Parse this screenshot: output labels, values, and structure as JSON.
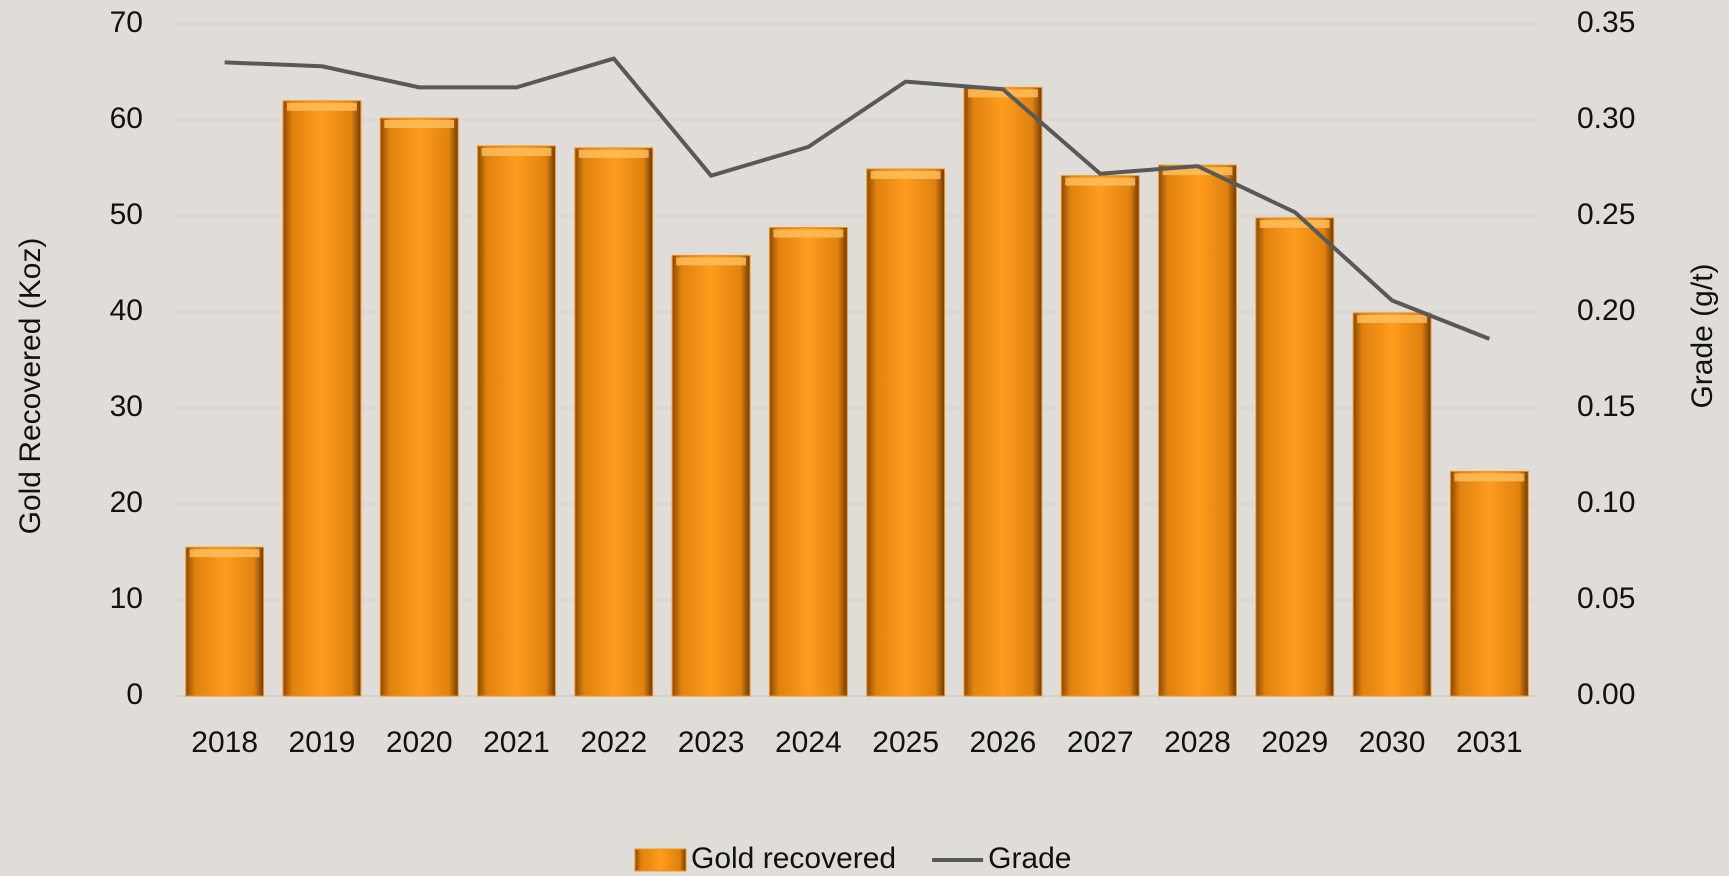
{
  "chart_data": {
    "type": "bar",
    "categories": [
      "2018",
      "2019",
      "2020",
      "2021",
      "2022",
      "2023",
      "2024",
      "2025",
      "2026",
      "2027",
      "2028",
      "2029",
      "2030",
      "2031"
    ],
    "series": [
      {
        "name": "Gold recovered",
        "type": "bar",
        "color": "#f39318",
        "values": [
          15.5,
          62,
          60.2,
          57.3,
          57.1,
          45.9,
          48.8,
          54.9,
          63.4,
          54.2,
          55.3,
          49.8,
          39.9,
          23.4
        ]
      },
      {
        "name": "Grade",
        "type": "line",
        "axis": "y2",
        "color": "#595959",
        "values": [
          0.33,
          0.328,
          0.317,
          0.317,
          0.332,
          0.271,
          0.286,
          0.32,
          0.316,
          0.272,
          0.276,
          0.252,
          0.206,
          0.186
        ]
      }
    ],
    "ylabel": "Gold Recovered (Koz)",
    "y2label": "Grade (g/t)",
    "ylim": [
      0,
      70
    ],
    "yticks": [
      0,
      10,
      20,
      30,
      40,
      50,
      60,
      70
    ],
    "y2lim": [
      0,
      0.35
    ],
    "y2ticks": [
      {
        "value": 0,
        "label": "0.00"
      },
      0.05,
      {
        "value": 0.1,
        "label": "0.10"
      },
      0.15,
      {
        "value": 0.2,
        "label": "0.20"
      },
      0.25,
      {
        "value": 0.3,
        "label": "0.30"
      },
      0.35
    ],
    "grid": true,
    "legend": "bottom"
  }
}
